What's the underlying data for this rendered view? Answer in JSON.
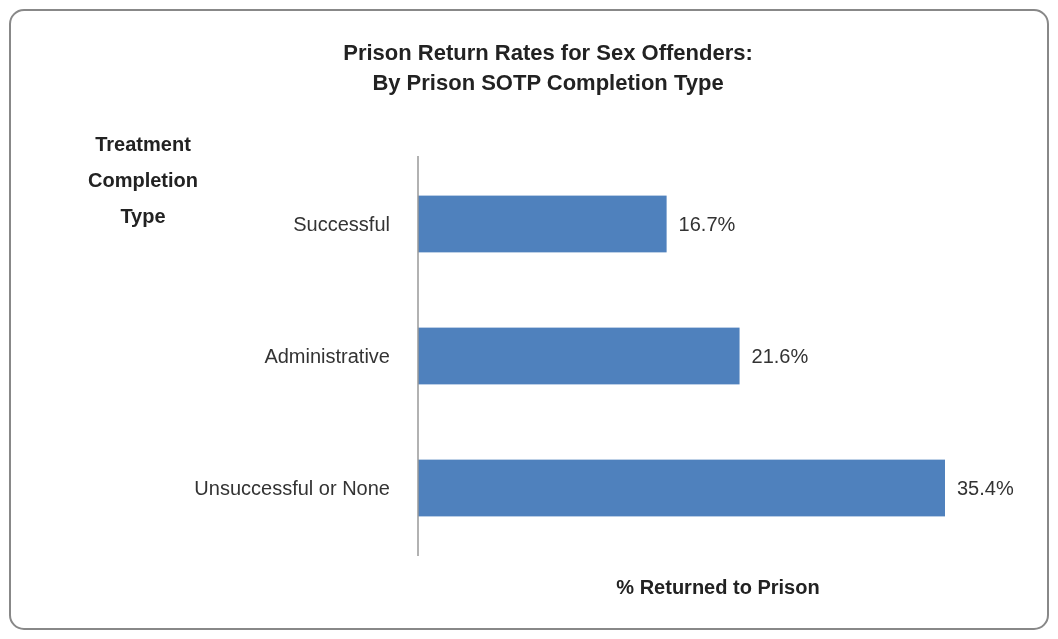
{
  "chart_data": {
    "type": "bar",
    "orientation": "horizontal",
    "title": "Prison Return Rates for Sex Offenders:\nBy Prison SOTP Completion Type",
    "ylabel": "Treatment\nCompletion\nType",
    "xlabel": "% Returned to Prison",
    "categories": [
      "Successful",
      "Administrative",
      "Unsuccessful or None"
    ],
    "values": [
      16.7,
      21.6,
      35.4
    ],
    "value_labels": [
      "16.7%",
      "21.6%",
      "35.4%"
    ],
    "color": "#4f81bd"
  }
}
